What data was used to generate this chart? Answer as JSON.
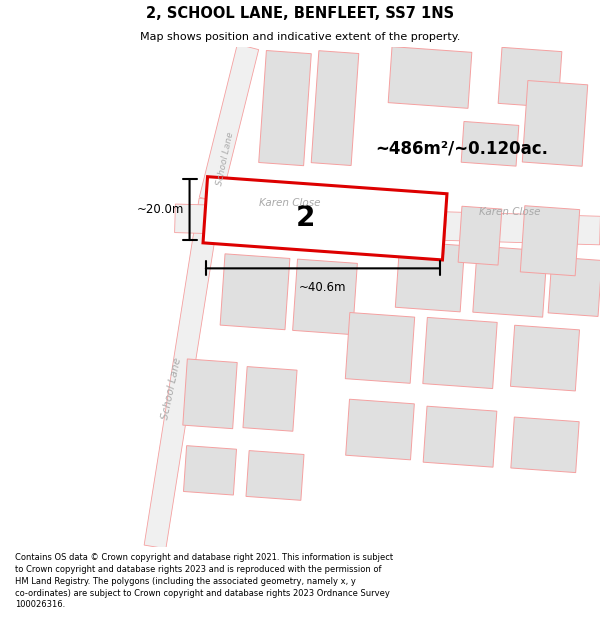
{
  "title": "2, SCHOOL LANE, BENFLEET, SS7 1NS",
  "subtitle": "Map shows position and indicative extent of the property.",
  "footer": "Contains OS data © Crown copyright and database right 2021. This information is subject to Crown copyright and database rights 2023 and is reproduced with the permission of HM Land Registry. The polygons (including the associated geometry, namely x, y co-ordinates) are subject to Crown copyright and database rights 2023 Ordnance Survey 100026316.",
  "area_label": "~486m²/~0.120ac.",
  "width_label": "~40.6m",
  "height_label": "~20.0m",
  "property_number": "2",
  "karen_close_label1": "Karen Close",
  "karen_close_label2": "Karen Close",
  "school_lane_label1": "School Lane",
  "school_lane_label2": "School Lane",
  "bg_color": "#ffffff",
  "building_fill": "#e0e0e0",
  "building_edge": "#f5a0a0",
  "road_fill": "#e8e8e8",
  "road_edge": "#f5a0a0",
  "property_fill": "#ffffff",
  "property_outline": "#dd0000",
  "text_color": "#000000",
  "road_label_color": "#aaaaaa",
  "dim_color": "#000000"
}
